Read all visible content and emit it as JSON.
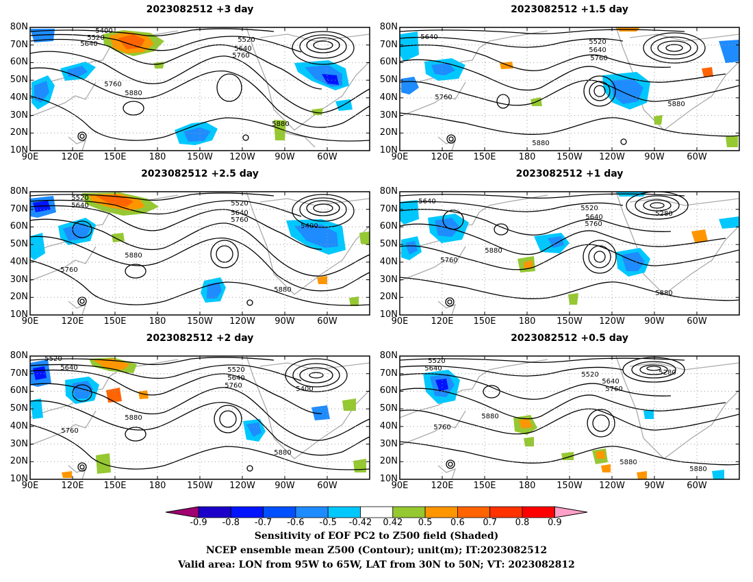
{
  "panels": [
    {
      "title": "2023082512  +3 day"
    },
    {
      "title": "2023082512  +1.5 day"
    },
    {
      "title": "2023082512  +2.5 day"
    },
    {
      "title": "2023082512  +1 day"
    },
    {
      "title": "2023082512  +2 day"
    },
    {
      "title": "2023082512  +0.5 day"
    }
  ],
  "map_axes": {
    "lat_labels": [
      "80N",
      "70N",
      "60N",
      "50N",
      "40N",
      "30N",
      "20N",
      "10N"
    ],
    "lon_labels": [
      "90E",
      "120E",
      "150E",
      "180",
      "150W",
      "120W",
      "90W",
      "60W"
    ]
  },
  "contour_labels": {
    "p0": [
      "5400",
      "5520",
      "5640",
      "5520",
      "5640",
      "5760",
      "5760",
      "5880",
      "5880"
    ],
    "p1": [
      "5640",
      "5520",
      "5640",
      "5760",
      "5760",
      "5880",
      "5880"
    ],
    "p2": [
      "5520",
      "5640",
      "5520",
      "5640",
      "5760",
      "5400",
      "5760",
      "5880",
      "5880"
    ],
    "p3": [
      "5640",
      "5520",
      "5640",
      "5760",
      "5280",
      "5880",
      "5760",
      "5880"
    ],
    "p4": [
      "5520",
      "5640",
      "5520",
      "5640",
      "5760",
      "5400",
      "5760",
      "5880",
      "5880"
    ],
    "p5": [
      "5520",
      "5640",
      "5520",
      "5640",
      "5760",
      "5280",
      "5880",
      "5760",
      "5880",
      "5880"
    ]
  },
  "colorbar": {
    "ticks": [
      "-0.9",
      "-0.8",
      "-0.7",
      "-0.6",
      "-0.5",
      "-0.42",
      "0.42",
      "0.5",
      "0.6",
      "0.7",
      "0.8",
      "0.9"
    ],
    "colors": [
      "#a00070",
      "#1a00c8",
      "#0014ff",
      "#0050ff",
      "#1e8cff",
      "#00c8ff",
      "#ffffff",
      "#96c832",
      "#ff9600",
      "#ff6400",
      "#ff3200",
      "#ff0000",
      "#ffa0c8"
    ]
  },
  "caption": {
    "line1": "Sensitivity of EOF PC2 to Z500 field (Shaded)",
    "line2": "NCEP ensemble mean Z500 (Contour); unit(m); IT:2023082512",
    "line3": "Valid area: LON from 95W to 65W, LAT from 30N to 50N; VT: 2023082812"
  }
}
